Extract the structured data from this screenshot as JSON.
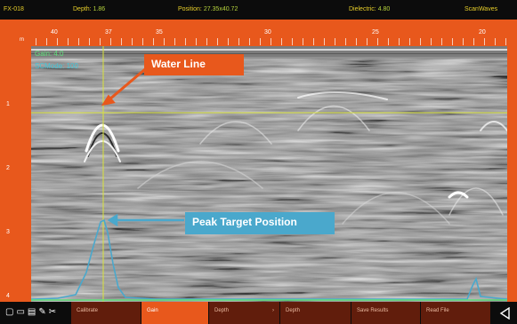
{
  "status": {
    "file": "FX-018",
    "depth_label": "Depth:",
    "depth_value": "1.86",
    "position_label": "Position:",
    "position_value": "27.35x40.72",
    "dielectric_label": "Dielectric:",
    "dielectric_value": "4.80",
    "mode": "ScanWaves"
  },
  "ruler": {
    "marks": [
      "40",
      "37",
      "35",
      "30",
      "25",
      "20"
    ],
    "unit": "m"
  },
  "depth_marks": [
    "1",
    "2",
    "3",
    "4"
  ],
  "overlay": {
    "gain": "Gain: 4.0",
    "filter": "SCMode: 100"
  },
  "callouts": {
    "water_line": "Water Line",
    "peak_target": "Peak Target Position"
  },
  "toolbar": {
    "icons": [
      "display-icon",
      "screen-icon",
      "print-icon",
      "edit-icon",
      "tools-icon"
    ],
    "buttons": [
      {
        "label": "Calibrate",
        "active": false
      },
      {
        "label": "Gain",
        "active": true
      },
      {
        "label": "Depth",
        "active": false
      },
      {
        "label": "Depth",
        "active": false
      },
      {
        "label": "Save Results",
        "active": false
      },
      {
        "label": "Read File",
        "active": false
      }
    ],
    "back": "back-arrow-icon"
  },
  "colors": {
    "accent": "#e8581c",
    "toolbar_bg": "#0c0c0c",
    "dark_button": "#611d0c",
    "status_text": "#e8cf2a",
    "peak_blue": "#4aa8cc",
    "water_line": "#d9e23a"
  }
}
